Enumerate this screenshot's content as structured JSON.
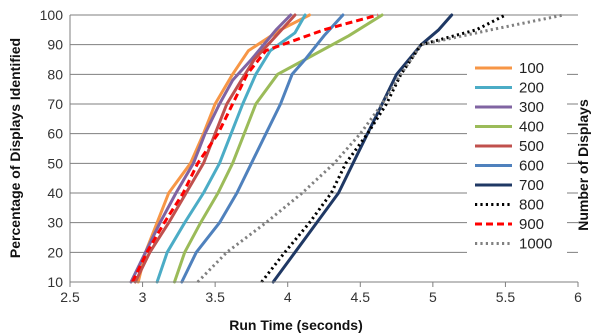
{
  "chart_data": {
    "type": "line",
    "xlabel": "Run Time (seconds)",
    "ylabel": "Percentage of Displays Identified",
    "legend_title": "Number of Displays",
    "xlim": [
      2.5,
      6
    ],
    "ylim": [
      10,
      100
    ],
    "x_ticks": [
      "2.5",
      "3",
      "3.5",
      "4",
      "4.5",
      "5",
      "5.5",
      "6"
    ],
    "y_ticks": [
      "10",
      "20",
      "30",
      "40",
      "50",
      "60",
      "70",
      "80",
      "90",
      "100"
    ],
    "grid": {
      "horizontal": true,
      "vertical": false
    },
    "legend_position": "right",
    "series": [
      {
        "name": "100",
        "color": "#F79646",
        "dash": "solid",
        "points": [
          [
            2.97,
            10
          ],
          [
            3.02,
            20
          ],
          [
            3.1,
            30
          ],
          [
            3.18,
            40
          ],
          [
            3.33,
            50
          ],
          [
            3.42,
            60
          ],
          [
            3.5,
            70
          ],
          [
            3.62,
            80
          ],
          [
            3.73,
            88
          ],
          [
            3.95,
            95
          ],
          [
            4.15,
            100
          ]
        ]
      },
      {
        "name": "200",
        "color": "#4BACC6",
        "dash": "solid",
        "points": [
          [
            3.1,
            10
          ],
          [
            3.17,
            20
          ],
          [
            3.29,
            30
          ],
          [
            3.42,
            40
          ],
          [
            3.53,
            50
          ],
          [
            3.61,
            60
          ],
          [
            3.69,
            70
          ],
          [
            3.78,
            80
          ],
          [
            3.88,
            88
          ],
          [
            4.05,
            94
          ],
          [
            4.12,
            100
          ]
        ]
      },
      {
        "name": "300",
        "color": "#8064A2",
        "dash": "solid",
        "points": [
          [
            2.92,
            10
          ],
          [
            3.02,
            20
          ],
          [
            3.12,
            30
          ],
          [
            3.23,
            40
          ],
          [
            3.35,
            50
          ],
          [
            3.43,
            60
          ],
          [
            3.53,
            70
          ],
          [
            3.62,
            78
          ],
          [
            3.75,
            85
          ],
          [
            3.92,
            95
          ],
          [
            4.02,
            100
          ]
        ]
      },
      {
        "name": "400",
        "color": "#9BBB59",
        "dash": "solid",
        "points": [
          [
            3.22,
            10
          ],
          [
            3.29,
            20
          ],
          [
            3.4,
            30
          ],
          [
            3.52,
            40
          ],
          [
            3.62,
            50
          ],
          [
            3.7,
            60
          ],
          [
            3.78,
            70
          ],
          [
            3.93,
            80
          ],
          [
            4.12,
            85
          ],
          [
            4.42,
            93
          ],
          [
            4.65,
            100
          ]
        ]
      },
      {
        "name": "500",
        "color": "#C0504D",
        "dash": "solid",
        "points": [
          [
            2.95,
            10
          ],
          [
            3.05,
            20
          ],
          [
            3.18,
            30
          ],
          [
            3.3,
            40
          ],
          [
            3.42,
            50
          ],
          [
            3.5,
            60
          ],
          [
            3.58,
            70
          ],
          [
            3.68,
            78
          ],
          [
            3.77,
            85
          ],
          [
            3.92,
            93
          ],
          [
            4.05,
            100
          ]
        ]
      },
      {
        "name": "600",
        "color": "#4F81BD",
        "dash": "solid",
        "points": [
          [
            3.27,
            10
          ],
          [
            3.37,
            20
          ],
          [
            3.53,
            30
          ],
          [
            3.65,
            40
          ],
          [
            3.75,
            50
          ],
          [
            3.85,
            60
          ],
          [
            3.95,
            70
          ],
          [
            4.03,
            80
          ],
          [
            4.12,
            85
          ],
          [
            4.25,
            93
          ],
          [
            4.38,
            100
          ]
        ]
      },
      {
        "name": "700",
        "color": "#1F3864",
        "dash": "solid",
        "points": [
          [
            3.9,
            10
          ],
          [
            4.05,
            20
          ],
          [
            4.2,
            30
          ],
          [
            4.35,
            40
          ],
          [
            4.45,
            50
          ],
          [
            4.55,
            60
          ],
          [
            4.65,
            70
          ],
          [
            4.75,
            80
          ],
          [
            4.92,
            90
          ],
          [
            5.04,
            95
          ],
          [
            5.13,
            100
          ]
        ]
      },
      {
        "name": "800",
        "color": "#000000",
        "dash": "dot",
        "points": [
          [
            3.82,
            10
          ],
          [
            3.98,
            20
          ],
          [
            4.15,
            30
          ],
          [
            4.3,
            40
          ],
          [
            4.4,
            50
          ],
          [
            4.55,
            60
          ],
          [
            4.68,
            70
          ],
          [
            4.78,
            80
          ],
          [
            4.92,
            90
          ],
          [
            5.3,
            95
          ],
          [
            5.5,
            100
          ]
        ]
      },
      {
        "name": "900",
        "color": "#FF0000",
        "dash": "dash",
        "points": [
          [
            2.93,
            10
          ],
          [
            3.03,
            20
          ],
          [
            3.15,
            30
          ],
          [
            3.28,
            40
          ],
          [
            3.38,
            50
          ],
          [
            3.52,
            60
          ],
          [
            3.62,
            70
          ],
          [
            3.72,
            80
          ],
          [
            3.85,
            88
          ],
          [
            4.25,
            95
          ],
          [
            4.62,
            100
          ]
        ]
      },
      {
        "name": "1000",
        "color": "#808080",
        "dash": "dot",
        "points": [
          [
            3.38,
            10
          ],
          [
            3.58,
            20
          ],
          [
            3.85,
            30
          ],
          [
            4.1,
            40
          ],
          [
            4.32,
            50
          ],
          [
            4.5,
            60
          ],
          [
            4.65,
            70
          ],
          [
            4.78,
            80
          ],
          [
            4.92,
            90
          ],
          [
            5.4,
            95
          ],
          [
            5.9,
            100
          ]
        ]
      }
    ]
  }
}
